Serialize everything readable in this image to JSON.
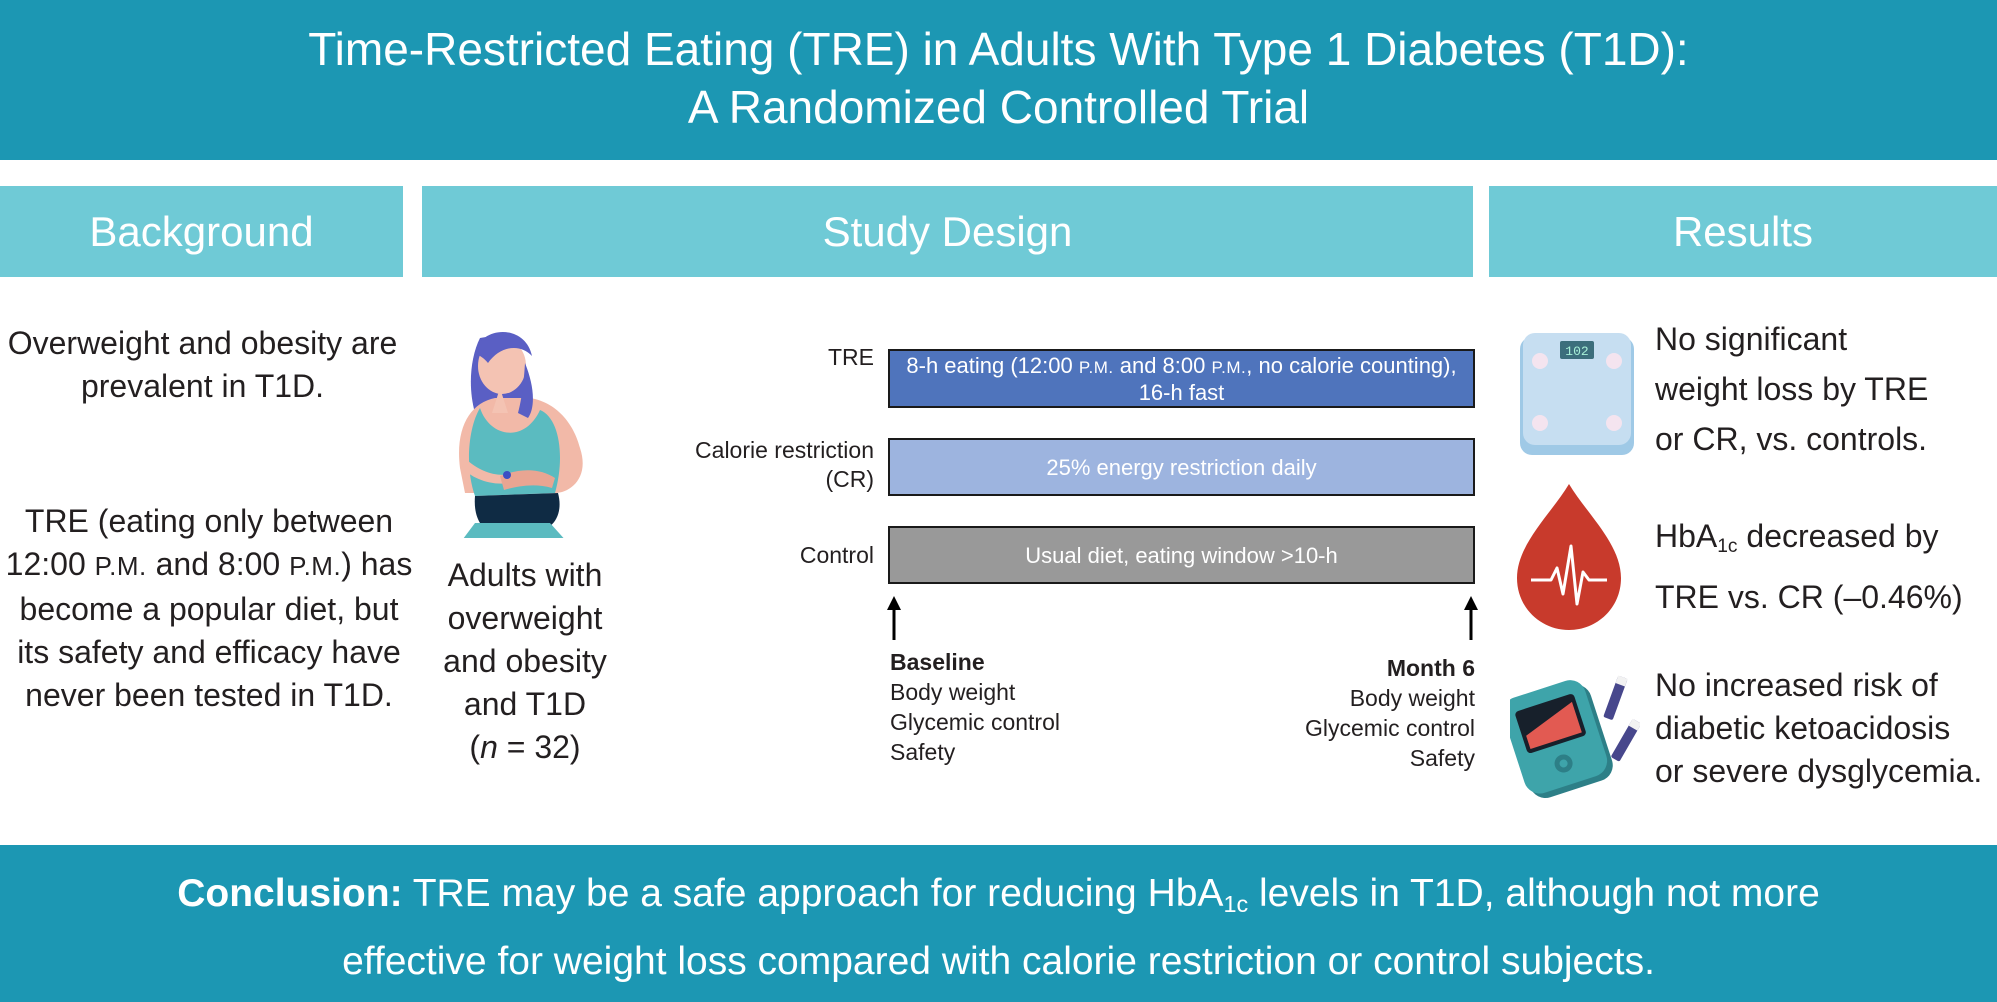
{
  "title": {
    "line1": "Time-Restricted Eating (TRE) in Adults With Type 1 Diabetes (T1D):",
    "line2": "A Randomized Controlled Trial"
  },
  "sections": {
    "background": "Background",
    "study_design": "Study Design",
    "results": "Results"
  },
  "background": {
    "para1": "Overweight and obesity are prevalent in T1D.",
    "para2_a": "TRE (eating only between 12:00 ",
    "pm": "P.M.",
    "para2_b": " and 8:00 ",
    "para2_c": ") has become a popular diet, but its safety and efficacy have never been tested in T1D."
  },
  "population": {
    "line1": "Adults with",
    "line2": "overweight",
    "line3": "and obesity",
    "line4": "and T1D",
    "n_open": "(",
    "n_var": "n",
    "n_rest": " = 32)"
  },
  "arms": [
    {
      "label": "TRE",
      "text_a": "8-h eating (12:00 ",
      "pm": "P.M.",
      "text_b": " and 8:00 ",
      "text_c": ", no calorie counting),",
      "text_d": "16-h fast",
      "color": "#4f74bc"
    },
    {
      "label_line1": "Calorie restriction",
      "label_line2": "(CR)",
      "text": "25% energy restriction daily",
      "color": "#9db4df"
    },
    {
      "label": "Control",
      "text": "Usual diet, eating window >10-h",
      "color": "#999999"
    }
  ],
  "timeline": {
    "baseline": {
      "head": "Baseline",
      "items": [
        "Body weight",
        "Glycemic control",
        "Safety"
      ]
    },
    "month6": {
      "head": "Month 6",
      "items": [
        "Body weight",
        "Glycemic control",
        "Safety"
      ]
    }
  },
  "results": {
    "r1": [
      "No significant",
      "weight loss by TRE",
      "or CR, vs. controls."
    ],
    "r2_a": "HbA",
    "r2_sub": "1c",
    "r2_b": " decreased by",
    "r2_line2": "TRE vs. CR (–0.46%)",
    "r3": [
      "No increased risk of",
      "diabetic ketoacidosis",
      "or severe dysglycemia."
    ],
    "scale_display": "102"
  },
  "conclusion": {
    "label": "Conclusion:",
    "text_a": " TRE may be a safe approach for reducing HbA",
    "sub": "1c",
    "text_b": " levels in T1D, although not more",
    "line2": "effective for weight loss compared with calorie restriction or control subjects."
  },
  "colors": {
    "banner": "#1c97b3",
    "section_header": "#6fcad6",
    "tre_bar": "#4f74bc",
    "cr_bar": "#9db4df",
    "control_bar": "#999999"
  },
  "icons": [
    "woman-injecting-icon",
    "bathroom-scale-icon",
    "blood-drop-heartbeat-icon",
    "glucose-meter-icon"
  ]
}
